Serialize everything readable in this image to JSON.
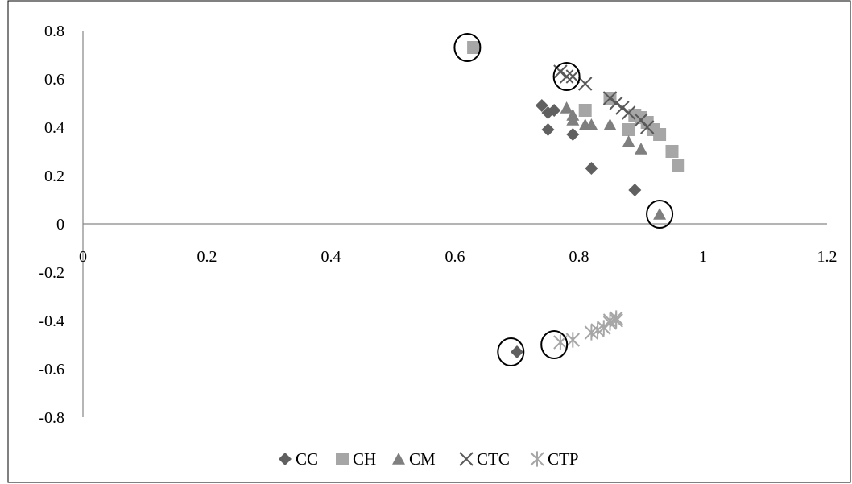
{
  "chart_data": {
    "type": "scatter",
    "title": "",
    "xlabel": "",
    "ylabel": "",
    "xlim": [
      0,
      1.2
    ],
    "ylim": [
      -0.8,
      0.8
    ],
    "x_ticks": [
      "0",
      "0.2",
      "0.4",
      "0.6",
      "0.8",
      "1",
      "1.2"
    ],
    "y_ticks": [
      "0.8",
      "0.6",
      "0.4",
      "0.2",
      "0",
      "-0.2",
      "-0.4",
      "-0.6",
      "-0.8"
    ],
    "grid": false,
    "legend_position": "bottom",
    "series": [
      {
        "name": "CC",
        "marker": "diamond",
        "color": "#606060",
        "points": [
          [
            0.74,
            0.49
          ],
          [
            0.75,
            0.46
          ],
          [
            0.76,
            0.47
          ],
          [
            0.75,
            0.39
          ],
          [
            0.79,
            0.37
          ],
          [
            0.82,
            0.23
          ],
          [
            0.89,
            0.14
          ],
          [
            0.7,
            -0.53
          ]
        ]
      },
      {
        "name": "CH",
        "marker": "square",
        "color": "#a6a6a6",
        "points": [
          [
            0.63,
            0.73
          ],
          [
            0.81,
            0.47
          ],
          [
            0.85,
            0.52
          ],
          [
            0.88,
            0.39
          ],
          [
            0.89,
            0.45
          ],
          [
            0.9,
            0.44
          ],
          [
            0.91,
            0.42
          ],
          [
            0.92,
            0.39
          ],
          [
            0.93,
            0.37
          ],
          [
            0.95,
            0.3
          ],
          [
            0.96,
            0.24
          ]
        ]
      },
      {
        "name": "CM",
        "marker": "triangle",
        "color": "#7f7f7f",
        "points": [
          [
            0.78,
            0.48
          ],
          [
            0.79,
            0.45
          ],
          [
            0.79,
            0.43
          ],
          [
            0.81,
            0.41
          ],
          [
            0.82,
            0.41
          ],
          [
            0.85,
            0.41
          ],
          [
            0.88,
            0.34
          ],
          [
            0.9,
            0.31
          ],
          [
            0.93,
            0.04
          ]
        ]
      },
      {
        "name": "CTC",
        "marker": "x",
        "color": "#595959",
        "points": [
          [
            0.77,
            0.63
          ],
          [
            0.78,
            0.61
          ],
          [
            0.79,
            0.61
          ],
          [
            0.81,
            0.58
          ],
          [
            0.85,
            0.52
          ],
          [
            0.86,
            0.5
          ],
          [
            0.87,
            0.48
          ],
          [
            0.88,
            0.46
          ],
          [
            0.9,
            0.43
          ],
          [
            0.91,
            0.4
          ]
        ]
      },
      {
        "name": "CTP",
        "marker": "star",
        "color": "#a6a6a6",
        "points": [
          [
            0.77,
            -0.49
          ],
          [
            0.79,
            -0.48
          ],
          [
            0.82,
            -0.45
          ],
          [
            0.83,
            -0.44
          ],
          [
            0.84,
            -0.43
          ],
          [
            0.85,
            -0.41
          ],
          [
            0.85,
            -0.4
          ],
          [
            0.86,
            -0.39
          ],
          [
            0.86,
            -0.4
          ]
        ]
      }
    ],
    "circled_points": [
      [
        0.62,
        0.73
      ],
      [
        0.78,
        0.61
      ],
      [
        0.93,
        0.04
      ],
      [
        0.69,
        -0.53
      ],
      [
        0.76,
        -0.5
      ]
    ]
  }
}
